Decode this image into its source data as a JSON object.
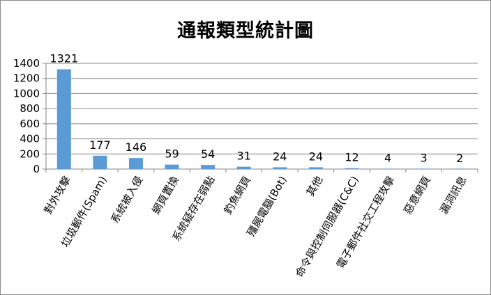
{
  "chart_data": {
    "type": "bar",
    "title": "通報類型統計圖",
    "categories": [
      "對外攻擊",
      "垃圾郵件(Spam)",
      "系統被入侵",
      "網頁置換",
      "系統疑存在弱點",
      "釣魚網頁",
      "殭屍電腦(Bot)",
      "其他",
      "命令與控制伺服器(C&C)",
      "電子郵件社交工程攻擊",
      "惡意網頁",
      "漏洞訊息"
    ],
    "values": [
      1321,
      177,
      146,
      59,
      54,
      31,
      24,
      24,
      12,
      4,
      3,
      2
    ],
    "data_labels": [
      "1321",
      "177",
      "146",
      "59",
      "54",
      "31",
      "24",
      "24",
      "12",
      "4",
      "3",
      "2"
    ],
    "yticks": [
      "0",
      "200",
      "400",
      "600",
      "800",
      "1000",
      "1200",
      "1400"
    ],
    "ylim": [
      0,
      1400
    ],
    "grid": true,
    "bar_color": "#5b9bd5",
    "legend": "none"
  }
}
